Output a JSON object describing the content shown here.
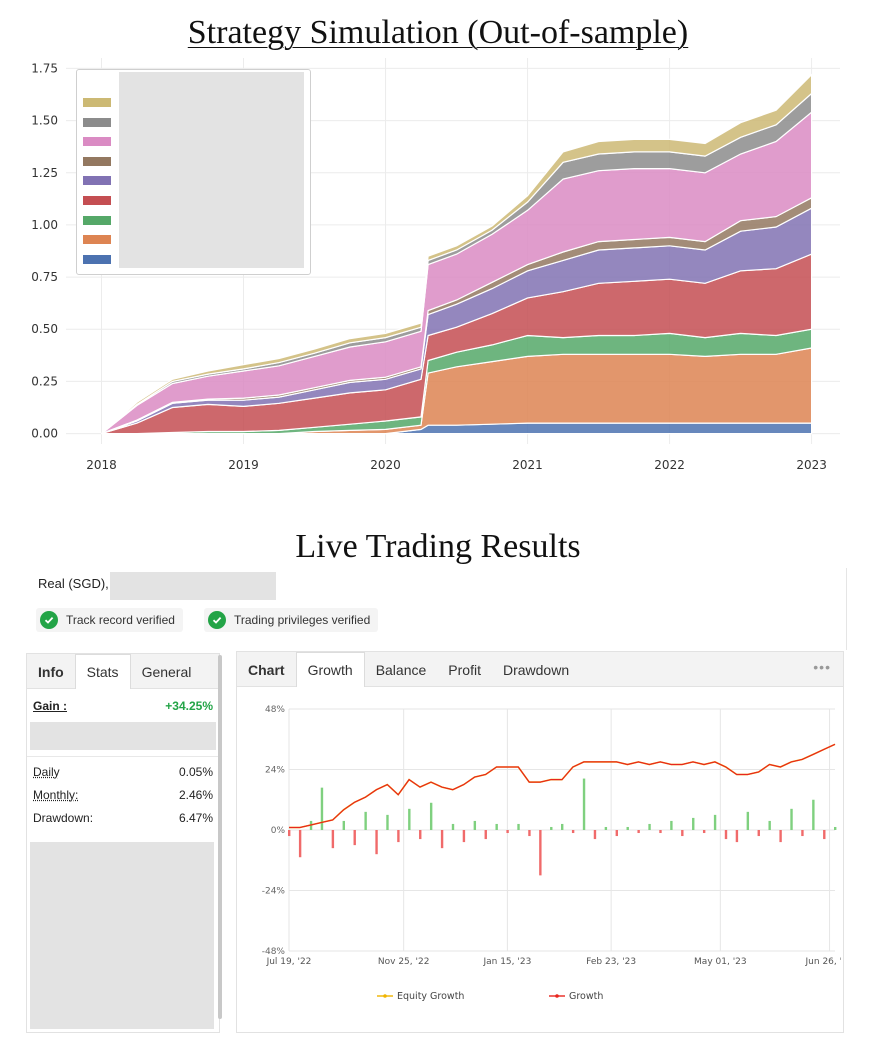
{
  "titles": {
    "sim": "Strategy Simulation (Out-of-sample)",
    "live": "Live Trading Results"
  },
  "account": {
    "label": "Real (SGD), ",
    "badges": [
      "Track record verified",
      "Trading privileges verified"
    ]
  },
  "stats_panel": {
    "tabs": [
      "Info",
      "Stats",
      "General"
    ],
    "active_tab": "Stats",
    "gain_label": "Gain :",
    "gain_value": "+34.25%",
    "rows": [
      {
        "label": "Daily",
        "value": "0.05%"
      },
      {
        "label": "Monthly:",
        "value": "2.46%"
      },
      {
        "label": "Drawdown:",
        "value": "6.47%"
      }
    ]
  },
  "chart_panel": {
    "tabs": [
      "Chart",
      "Growth",
      "Balance",
      "Profit",
      "Drawdown"
    ],
    "active_tab": "Growth",
    "more_icon": "more-dots-icon"
  },
  "colors": {
    "accent_green": "#23a447",
    "growth_line": "#e8261e",
    "equity_line": "#f0b400",
    "bar_pos": "#7fd07f",
    "bar_neg": "#f06a6a"
  },
  "chart_data": [
    {
      "type": "area",
      "title": "Strategy Simulation (Out-of-sample)",
      "stacked": true,
      "x_ticks": [
        "2018",
        "2019",
        "2020",
        "2021",
        "2022",
        "2023"
      ],
      "xlim": [
        2017.75,
        2023.2
      ],
      "ylim": [
        -0.05,
        1.8
      ],
      "y_ticks": [
        "0.00",
        "0.25",
        "0.50",
        "0.75",
        "1.00",
        "1.25",
        "1.50",
        "1.75"
      ],
      "grid": true,
      "legend": "top-left",
      "x": [
        2018.0,
        2018.25,
        2018.5,
        2018.75,
        2019.0,
        2019.25,
        2019.5,
        2019.75,
        2020.0,
        2020.25,
        2020.3,
        2020.5,
        2020.75,
        2021.0,
        2021.25,
        2021.5,
        2021.75,
        2022.0,
        2022.25,
        2022.5,
        2022.75,
        2023.0
      ],
      "series": [
        {
          "color": "#4c72b0",
          "values": [
            0,
            0,
            0,
            0,
            0,
            0,
            0,
            0,
            0,
            0.02,
            0.04,
            0.04,
            0.045,
            0.05,
            0.05,
            0.05,
            0.05,
            0.05,
            0.05,
            0.05,
            0.05,
            0.05
          ]
        },
        {
          "color": "#dd8452",
          "values": [
            0,
            0,
            0,
            0,
            0,
            0,
            0.01,
            0.015,
            0.02,
            0.02,
            0.25,
            0.28,
            0.3,
            0.32,
            0.33,
            0.33,
            0.33,
            0.33,
            0.32,
            0.33,
            0.33,
            0.36
          ]
        },
        {
          "color": "#55a868",
          "values": [
            0,
            0,
            0.005,
            0.01,
            0.01,
            0.015,
            0.02,
            0.03,
            0.04,
            0.04,
            0.06,
            0.07,
            0.08,
            0.1,
            0.08,
            0.09,
            0.09,
            0.1,
            0.09,
            0.1,
            0.09,
            0.09
          ]
        },
        {
          "color": "#c44e52",
          "values": [
            0,
            0.05,
            0.12,
            0.13,
            0.12,
            0.13,
            0.14,
            0.15,
            0.15,
            0.18,
            0.12,
            0.12,
            0.15,
            0.18,
            0.22,
            0.25,
            0.26,
            0.26,
            0.26,
            0.3,
            0.32,
            0.36
          ]
        },
        {
          "color": "#8172b3",
          "values": [
            0,
            0.01,
            0.02,
            0.02,
            0.03,
            0.03,
            0.04,
            0.05,
            0.05,
            0.05,
            0.1,
            0.11,
            0.12,
            0.13,
            0.15,
            0.16,
            0.16,
            0.16,
            0.16,
            0.19,
            0.2,
            0.22
          ]
        },
        {
          "color": "#937860",
          "values": [
            0,
            0.005,
            0.005,
            0.005,
            0.01,
            0.01,
            0.01,
            0.01,
            0.01,
            0.01,
            0.02,
            0.02,
            0.03,
            0.03,
            0.04,
            0.04,
            0.04,
            0.04,
            0.04,
            0.05,
            0.05,
            0.05
          ]
        },
        {
          "color": "#da8bc3",
          "values": [
            0,
            0.07,
            0.09,
            0.11,
            0.13,
            0.14,
            0.15,
            0.16,
            0.17,
            0.17,
            0.22,
            0.22,
            0.23,
            0.26,
            0.35,
            0.34,
            0.34,
            0.33,
            0.33,
            0.32,
            0.36,
            0.41
          ]
        },
        {
          "color": "#8c8c8c",
          "values": [
            0,
            0.005,
            0.01,
            0.01,
            0.01,
            0.015,
            0.015,
            0.02,
            0.02,
            0.02,
            0.02,
            0.02,
            0.02,
            0.04,
            0.08,
            0.08,
            0.08,
            0.08,
            0.08,
            0.08,
            0.08,
            0.09
          ]
        },
        {
          "color": "#ccb974",
          "values": [
            0,
            0.01,
            0.01,
            0.015,
            0.02,
            0.02,
            0.02,
            0.02,
            0.02,
            0.02,
            0.02,
            0.02,
            0.02,
            0.03,
            0.05,
            0.06,
            0.06,
            0.06,
            0.06,
            0.07,
            0.07,
            0.09
          ]
        }
      ]
    },
    {
      "type": "line",
      "x_ticks": [
        "Jul 19, '22",
        "Nov 25, '22",
        "Jan 15, '23",
        "Feb 23, '23",
        "May 01, '23",
        "Jun 26, '23"
      ],
      "y_ticks": [
        "48%",
        "24%",
        "0%",
        "-24%",
        "-48%"
      ],
      "ylim": [
        -48,
        48
      ],
      "grid": true,
      "legend": "bottom",
      "series": [
        {
          "name": "Equity Growth",
          "color": "#f0b400"
        },
        {
          "name": "Growth",
          "color": "#e8261e"
        }
      ],
      "x": [
        0,
        2,
        4,
        6,
        8,
        10,
        12,
        14,
        16,
        18,
        20,
        22,
        24,
        26,
        28,
        30,
        32,
        34,
        36,
        38,
        40,
        42,
        44,
        46,
        48,
        50,
        52,
        54,
        56,
        58,
        60,
        62,
        64,
        66,
        68,
        70,
        72,
        74,
        76,
        78,
        80,
        82,
        84,
        86,
        88,
        90,
        92,
        94,
        96,
        98,
        100
      ],
      "growth": [
        1,
        1,
        2,
        3,
        4,
        8,
        11,
        13,
        16,
        18,
        14,
        20,
        17,
        19,
        17,
        16,
        18,
        21,
        22,
        25,
        25,
        25,
        19,
        19,
        20,
        20,
        25,
        27,
        27,
        27,
        27,
        26,
        27,
        26,
        27,
        26,
        26,
        27,
        26,
        27,
        25,
        22,
        22,
        23,
        26,
        25,
        27,
        28,
        30,
        32,
        34
      ],
      "bars": [
        -2,
        -9,
        3,
        14,
        -6,
        3,
        -5,
        6,
        -8,
        5,
        -4,
        7,
        -3,
        9,
        -6,
        2,
        -4,
        3,
        -3,
        2,
        -1,
        2,
        -2,
        -15,
        1,
        2,
        -1,
        17,
        -3,
        1,
        -2,
        1,
        -1,
        2,
        -1,
        3,
        -2,
        4,
        -1,
        5,
        -3,
        -4,
        6,
        -2,
        3,
        -4,
        7,
        -2,
        10,
        -3,
        1
      ],
      "bar_axis_max": 20
    }
  ]
}
